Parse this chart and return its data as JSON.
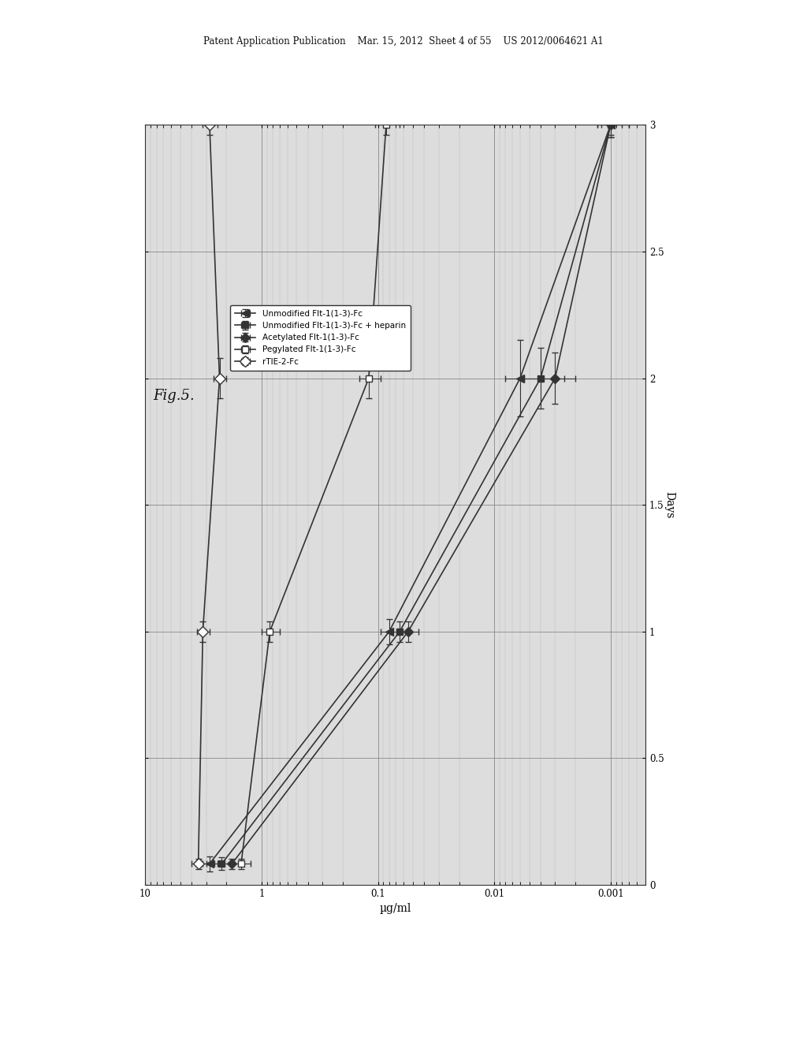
{
  "title": "Fig.5.",
  "xlabel": "Days",
  "ylabel": "µg/ml",
  "header_text": "Patent Application Publication    Mar. 15, 2012  Sheet 4 of 55    US 2012/0064621 A1",
  "xlim": [
    0,
    3
  ],
  "ylim_log": [
    -3,
    1
  ],
  "yticks": [
    0.001,
    0.01,
    0.1,
    1,
    10
  ],
  "ytick_labels": [
    "0.001",
    "0.01",
    "0.1",
    "1",
    "10"
  ],
  "xticks": [
    0,
    0.5,
    1,
    1.5,
    2,
    2.5,
    3
  ],
  "legend_entries": [
    "Unmodified Flt-1(1-3)-Fc",
    "Unmodified Flt-1(1-3)-Fc + heparin",
    "Acetylated Flt-1(1-3)-Fc",
    "Pegylated Flt-1(1-3)-Fc",
    "rTIE-2-Fc"
  ],
  "series": {
    "unmodified": {
      "x": [
        0.1,
        1.0,
        2.0,
        3.0
      ],
      "y": [
        2.5,
        0.08,
        0.005,
        0.001
      ],
      "xerr": [
        0.05,
        0.05,
        0.1,
        0.05
      ],
      "yerr": [
        0.3,
        0.01,
        0.001,
        0.0002
      ],
      "marker": "^",
      "color": "#222222",
      "label": "Unmodified Flt-1(1-3)-Fc"
    },
    "unmodified_heparin": {
      "x": [
        0.1,
        1.0,
        2.0,
        3.0
      ],
      "y": [
        1.8,
        0.06,
        0.004,
        0.001
      ],
      "xerr": [
        0.05,
        0.05,
        0.1,
        0.05
      ],
      "yerr": [
        0.2,
        0.008,
        0.001,
        0.0002
      ],
      "marker": "s",
      "color": "#444444",
      "label": "Unmodified Flt-1(1-3)-Fc + heparin"
    },
    "acetylated": {
      "x": [
        0.1,
        1.0,
        2.0,
        3.0
      ],
      "y": [
        1.5,
        0.05,
        0.003,
        0.001
      ],
      "xerr": [
        0.05,
        0.05,
        0.1,
        0.05
      ],
      "yerr": [
        0.15,
        0.007,
        0.0008,
        0.0001
      ],
      "marker": "D",
      "color": "#333333",
      "label": "Acetylated Flt-1(1-3)-Fc"
    },
    "pegylated": {
      "x": [
        0.1,
        1.0,
        2.0,
        3.0
      ],
      "y": [
        1.2,
        0.8,
        0.3,
        0.1
      ],
      "xerr": [
        0.05,
        0.05,
        0.1,
        0.05
      ],
      "yerr": [
        0.15,
        0.08,
        0.03,
        0.01
      ],
      "marker": "s",
      "color": "#555555",
      "label": "Pegylated Flt-1(1-3)-Fc"
    },
    "rtie2": {
      "x": [
        0.1,
        1.0,
        2.0,
        3.0
      ],
      "y": [
        3.5,
        3.0,
        2.5,
        2.8
      ],
      "xerr": [
        0.05,
        0.05,
        0.1,
        0.05
      ],
      "yerr": [
        0.4,
        0.3,
        0.2,
        0.3
      ],
      "marker": "D",
      "color": "#111111",
      "label": "rTIE-2-Fc"
    }
  },
  "background_color": "#ffffff",
  "plot_bg_color": "#e8e8e8",
  "grid_color": "#aaaaaa"
}
